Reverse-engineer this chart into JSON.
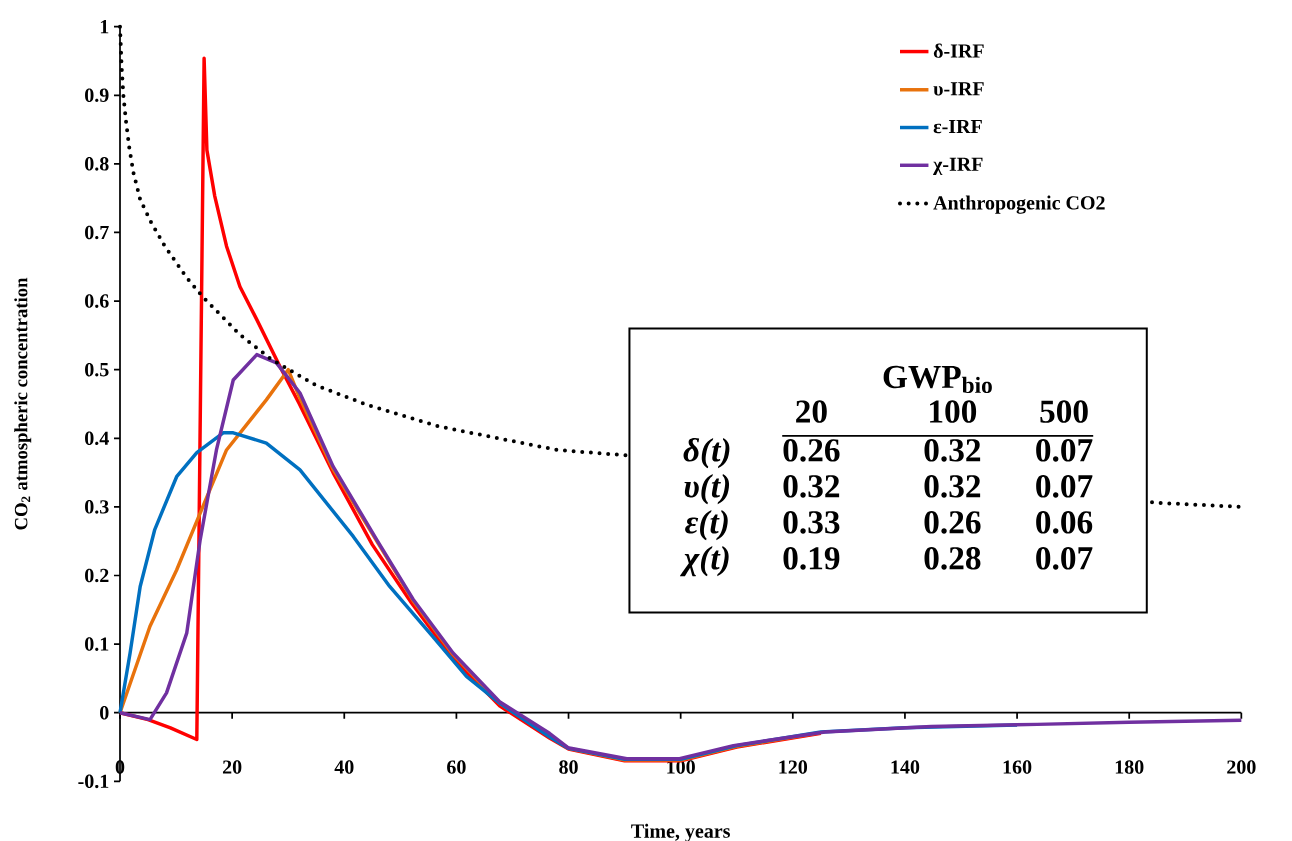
{
  "chart_data": {
    "type": "line",
    "xlabel": "Time, years",
    "ylabel": "CO$_{2}$ atmospheric concentration",
    "xlim": [
      0,
      200
    ],
    "ylim": [
      -0.1,
      1
    ],
    "xticks": [
      0,
      20,
      40,
      60,
      80,
      100,
      120,
      140,
      160,
      180,
      200
    ],
    "yticks": [
      -0.1,
      0,
      0.1,
      0.2,
      0.3,
      0.4,
      0.5,
      0.6,
      0.7,
      0.8,
      0.9,
      1
    ],
    "legend": "top right",
    "marker": "none",
    "series": [
      {
        "name": "δ-IRF",
        "color": "#ff0000",
        "line_style": "solid",
        "x": [
          0,
          5,
          9,
          13.7,
          15,
          15.5,
          16.9,
          19,
          21.4,
          24.4,
          28.5,
          32,
          38,
          45,
          52,
          59,
          67.7,
          76.6,
          80,
          90,
          100,
          110,
          125
        ],
        "values": [
          0,
          -0.01,
          -0.022,
          -0.039,
          0.954,
          0.82,
          0.753,
          0.68,
          0.621,
          0.573,
          0.505,
          0.45,
          0.35,
          0.245,
          0.16,
          0.083,
          0.01,
          -0.037,
          -0.053,
          -0.07,
          -0.07,
          -0.05,
          -0.03
        ]
      },
      {
        "name": "υ-IRF",
        "color": "#e8720c",
        "line_style": "solid",
        "x": [
          0,
          5.35,
          10.1,
          14.3,
          19,
          26.1,
          30,
          32,
          38,
          45.8,
          52.3,
          59.4,
          67.7,
          76.6,
          80,
          90,
          100,
          110,
          125
        ],
        "values": [
          0,
          0.126,
          0.208,
          0.291,
          0.383,
          0.456,
          0.5,
          0.46,
          0.355,
          0.25,
          0.163,
          0.085,
          0.014,
          -0.033,
          -0.052,
          -0.069,
          -0.069,
          -0.049,
          -0.029
        ]
      },
      {
        "name": "ε-IRF",
        "color": "#0070c0",
        "line_style": "solid",
        "x": [
          0,
          1.8,
          3.6,
          6.2,
          10.1,
          13.7,
          18.4,
          20.2,
          26.1,
          32.1,
          41.6,
          48.1,
          55.8,
          61.8,
          67.7,
          76.6,
          80,
          90,
          100,
          110,
          125,
          140,
          160
        ],
        "values": [
          0,
          0.087,
          0.184,
          0.267,
          0.344,
          0.379,
          0.408,
          0.408,
          0.393,
          0.354,
          0.257,
          0.184,
          0.111,
          0.053,
          0.014,
          -0.035,
          -0.052,
          -0.068,
          -0.068,
          -0.048,
          -0.028,
          -0.022,
          -0.018
        ]
      },
      {
        "name": "χ-IRF",
        "color": "#7030a0",
        "line_style": "solid",
        "x": [
          0,
          5.35,
          8.3,
          11.9,
          14.3,
          17.2,
          20.2,
          24.4,
          27.9,
          32.1,
          38,
          45.8,
          52.3,
          59.4,
          67.7,
          76.6,
          79.9,
          90.4,
          99.8,
          109.4,
          125.7,
          144.7,
          163.6,
          180,
          200
        ],
        "values": [
          0,
          -0.01,
          0.029,
          0.116,
          0.252,
          0.383,
          0.485,
          0.522,
          0.51,
          0.466,
          0.359,
          0.252,
          0.165,
          0.087,
          0.016,
          -0.03,
          -0.051,
          -0.067,
          -0.067,
          -0.048,
          -0.028,
          -0.02,
          -0.017,
          -0.014,
          -0.011
        ]
      },
      {
        "name": "Anthropogenic CO2",
        "color": "#000000",
        "line_style": "dotted",
        "x": [
          0,
          0.3,
          0.6,
          1.07,
          1.66,
          2.4,
          3.6,
          5.6,
          8,
          11.9,
          14.9,
          21.4,
          27,
          35,
          44,
          57,
          78,
          89,
          185,
          200
        ],
        "values": [
          1,
          0.94,
          0.9,
          0.862,
          0.823,
          0.787,
          0.748,
          0.714,
          0.68,
          0.634,
          0.605,
          0.551,
          0.515,
          0.477,
          0.449,
          0.417,
          0.383,
          0.376,
          0.306,
          0.3
        ]
      }
    ],
    "annotations": [
      "GWP$_{bio}$",
      "20",
      "100",
      "500",
      "δ(t)",
      "0.26",
      "0.32",
      "0.07",
      "υ(t)",
      "0.32",
      "0.32",
      "0.07",
      "ε(t)",
      "0.33",
      "0.26",
      "0.06",
      "χ(t)",
      "0.19",
      "0.28",
      "0.07"
    ]
  }
}
